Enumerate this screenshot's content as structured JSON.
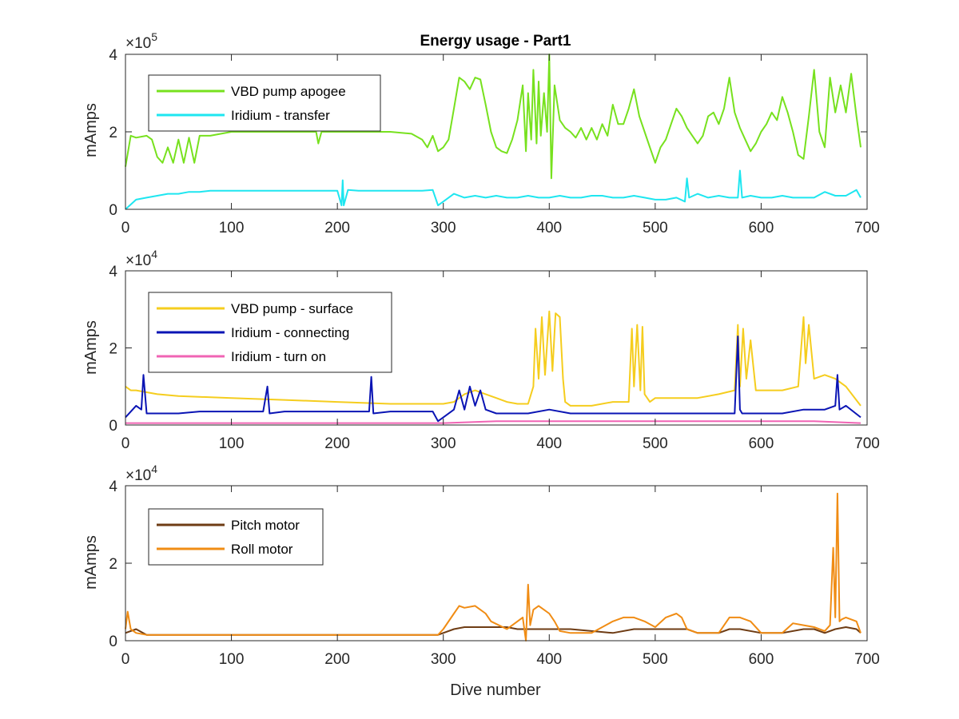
{
  "figure": {
    "background": "#ffffff",
    "axis_color": "#262626"
  },
  "chart_data": [
    {
      "type": "line",
      "title": "Energy usage - Part1",
      "xlabel": "",
      "ylabel": "mAmps",
      "y_multiplier": "×10",
      "y_exponent": "5",
      "xlim": [
        0,
        700
      ],
      "ylim": [
        0,
        4
      ],
      "xticks": [
        0,
        100,
        200,
        300,
        400,
        500,
        600,
        700
      ],
      "yticks": [
        0,
        2,
        4
      ],
      "grid": false,
      "legend_position": "top-left",
      "series": [
        {
          "name": "VBD pump apogee",
          "color": "#77e11e",
          "x": [
            0,
            5,
            10,
            20,
            25,
            30,
            35,
            40,
            45,
            50,
            55,
            60,
            65,
            70,
            80,
            100,
            120,
            150,
            180,
            182,
            185,
            200,
            220,
            250,
            270,
            280,
            285,
            290,
            295,
            300,
            305,
            310,
            315,
            320,
            325,
            330,
            335,
            340,
            345,
            350,
            355,
            360,
            365,
            370,
            375,
            378,
            380,
            383,
            385,
            388,
            390,
            392,
            395,
            398,
            400,
            402,
            405,
            410,
            415,
            420,
            425,
            430,
            435,
            440,
            445,
            450,
            455,
            460,
            465,
            470,
            475,
            480,
            485,
            490,
            495,
            500,
            505,
            510,
            515,
            520,
            525,
            530,
            535,
            540,
            545,
            550,
            555,
            560,
            565,
            570,
            575,
            580,
            585,
            590,
            595,
            600,
            605,
            610,
            615,
            620,
            625,
            630,
            635,
            640,
            645,
            650,
            655,
            660,
            665,
            670,
            675,
            680,
            685,
            690,
            694
          ],
          "values": [
            1.1,
            1.9,
            1.85,
            1.9,
            1.8,
            1.35,
            1.2,
            1.6,
            1.2,
            1.8,
            1.2,
            1.85,
            1.2,
            1.9,
            1.9,
            2.0,
            2.0,
            2.0,
            2.0,
            1.7,
            2.0,
            2.0,
            2.0,
            2.0,
            1.95,
            1.8,
            1.6,
            1.9,
            1.5,
            1.6,
            1.8,
            2.6,
            3.4,
            3.3,
            3.1,
            3.4,
            3.35,
            2.7,
            2.0,
            1.6,
            1.5,
            1.45,
            1.8,
            2.3,
            3.2,
            1.5,
            3.0,
            1.8,
            3.6,
            1.7,
            3.3,
            1.9,
            3.0,
            2.0,
            4.0,
            0.8,
            3.2,
            2.3,
            2.1,
            2.0,
            1.85,
            2.1,
            1.8,
            2.1,
            1.8,
            2.2,
            1.9,
            2.7,
            2.2,
            2.2,
            2.6,
            3.1,
            2.4,
            2.0,
            1.6,
            1.2,
            1.6,
            1.8,
            2.2,
            2.6,
            2.4,
            2.1,
            1.9,
            1.7,
            1.9,
            2.4,
            2.5,
            2.2,
            2.6,
            3.4,
            2.5,
            2.1,
            1.8,
            1.5,
            1.7,
            2.0,
            2.2,
            2.5,
            2.3,
            2.9,
            2.5,
            2.0,
            1.4,
            1.3,
            2.4,
            3.6,
            2.0,
            1.6,
            3.4,
            2.5,
            3.2,
            2.5,
            3.5,
            2.4,
            1.6
          ]
        },
        {
          "name": "Iridium - transfer",
          "color": "#1ee6f0",
          "x": [
            0,
            10,
            20,
            30,
            40,
            50,
            60,
            70,
            80,
            90,
            100,
            110,
            120,
            130,
            140,
            150,
            160,
            170,
            180,
            190,
            200,
            204,
            205,
            206,
            210,
            220,
            230,
            240,
            250,
            260,
            270,
            280,
            290,
            295,
            300,
            310,
            320,
            330,
            340,
            350,
            360,
            370,
            380,
            390,
            400,
            410,
            420,
            430,
            440,
            450,
            460,
            470,
            480,
            490,
            500,
            510,
            520,
            528,
            530,
            532,
            540,
            550,
            560,
            570,
            578,
            580,
            582,
            590,
            600,
            610,
            620,
            630,
            640,
            650,
            660,
            670,
            680,
            690,
            694
          ],
          "values": [
            0.0,
            0.25,
            0.3,
            0.35,
            0.4,
            0.4,
            0.45,
            0.45,
            0.48,
            0.48,
            0.48,
            0.48,
            0.48,
            0.48,
            0.48,
            0.48,
            0.48,
            0.48,
            0.48,
            0.48,
            0.48,
            0.1,
            0.75,
            0.1,
            0.5,
            0.48,
            0.48,
            0.48,
            0.48,
            0.48,
            0.48,
            0.48,
            0.5,
            0.1,
            0.2,
            0.4,
            0.3,
            0.35,
            0.3,
            0.35,
            0.3,
            0.3,
            0.35,
            0.3,
            0.3,
            0.35,
            0.3,
            0.3,
            0.35,
            0.35,
            0.3,
            0.3,
            0.35,
            0.3,
            0.25,
            0.25,
            0.3,
            0.2,
            0.8,
            0.3,
            0.4,
            0.3,
            0.35,
            0.3,
            0.3,
            1.0,
            0.3,
            0.35,
            0.3,
            0.3,
            0.35,
            0.3,
            0.3,
            0.3,
            0.45,
            0.35,
            0.35,
            0.5,
            0.3
          ]
        }
      ]
    },
    {
      "type": "line",
      "title": "",
      "xlabel": "",
      "ylabel": "mAmps",
      "y_multiplier": "×10",
      "y_exponent": "4",
      "xlim": [
        0,
        700
      ],
      "ylim": [
        0,
        4
      ],
      "xticks": [
        0,
        100,
        200,
        300,
        400,
        500,
        600,
        700
      ],
      "yticks": [
        0,
        2,
        4
      ],
      "grid": false,
      "legend_position": "top-left",
      "series": [
        {
          "name": "VBD pump - surface",
          "color": "#f5cd1e",
          "x": [
            0,
            5,
            10,
            20,
            30,
            50,
            100,
            150,
            200,
            250,
            290,
            300,
            310,
            320,
            330,
            340,
            350,
            360,
            370,
            380,
            385,
            387,
            390,
            393,
            396,
            400,
            403,
            406,
            410,
            413,
            415,
            420,
            440,
            460,
            475,
            478,
            480,
            483,
            486,
            488,
            490,
            495,
            500,
            520,
            540,
            560,
            575,
            578,
            580,
            583,
            586,
            590,
            595,
            600,
            620,
            635,
            640,
            642,
            645,
            650,
            660,
            670,
            680,
            694
          ],
          "values": [
            1.0,
            0.9,
            0.9,
            0.85,
            0.8,
            0.75,
            0.7,
            0.65,
            0.6,
            0.55,
            0.55,
            0.55,
            0.6,
            0.8,
            0.9,
            0.8,
            0.7,
            0.6,
            0.55,
            0.55,
            1.0,
            2.5,
            1.2,
            2.8,
            1.3,
            2.95,
            1.4,
            2.9,
            2.8,
            1.2,
            0.6,
            0.5,
            0.5,
            0.6,
            0.6,
            2.5,
            1.0,
            2.6,
            0.9,
            2.55,
            0.8,
            0.6,
            0.7,
            0.7,
            0.7,
            0.8,
            0.9,
            2.6,
            1.0,
            2.5,
            1.2,
            2.2,
            0.9,
            0.9,
            0.9,
            1.0,
            2.8,
            1.6,
            2.6,
            1.2,
            1.3,
            1.2,
            1.0,
            0.5
          ]
        },
        {
          "name": "Iridium - connecting",
          "color": "#0a14b4",
          "x": [
            0,
            10,
            15,
            17,
            20,
            30,
            50,
            70,
            100,
            130,
            134,
            136,
            150,
            170,
            200,
            220,
            230,
            232,
            234,
            250,
            270,
            290,
            295,
            300,
            310,
            315,
            320,
            325,
            330,
            335,
            340,
            350,
            360,
            380,
            400,
            420,
            440,
            460,
            480,
            500,
            520,
            540,
            560,
            575,
            578,
            580,
            582,
            590,
            600,
            620,
            640,
            650,
            660,
            670,
            672,
            674,
            680,
            694
          ],
          "values": [
            0.2,
            0.5,
            0.4,
            1.3,
            0.3,
            0.3,
            0.3,
            0.35,
            0.35,
            0.35,
            1.0,
            0.3,
            0.35,
            0.35,
            0.35,
            0.35,
            0.35,
            1.25,
            0.3,
            0.35,
            0.35,
            0.35,
            0.1,
            0.2,
            0.4,
            0.9,
            0.4,
            1.0,
            0.5,
            0.9,
            0.4,
            0.3,
            0.3,
            0.3,
            0.4,
            0.3,
            0.3,
            0.3,
            0.3,
            0.3,
            0.3,
            0.3,
            0.3,
            0.3,
            2.3,
            0.4,
            0.3,
            0.3,
            0.3,
            0.3,
            0.4,
            0.4,
            0.4,
            0.5,
            1.3,
            0.4,
            0.5,
            0.2
          ]
        },
        {
          "name": "Iridium - turn on",
          "color": "#f064b4",
          "x": [
            0,
            50,
            100,
            150,
            200,
            250,
            300,
            350,
            400,
            450,
            500,
            550,
            600,
            650,
            694
          ],
          "values": [
            0.05,
            0.05,
            0.05,
            0.05,
            0.05,
            0.05,
            0.05,
            0.1,
            0.1,
            0.1,
            0.1,
            0.1,
            0.1,
            0.1,
            0.05
          ]
        }
      ]
    },
    {
      "type": "line",
      "title": "",
      "xlabel": "Dive number",
      "ylabel": "mAmps",
      "y_multiplier": "×10",
      "y_exponent": "4",
      "xlim": [
        0,
        700
      ],
      "ylim": [
        0,
        4
      ],
      "xticks": [
        0,
        100,
        200,
        300,
        400,
        500,
        600,
        700
      ],
      "yticks": [
        0,
        2,
        4
      ],
      "grid": false,
      "legend_position": "top-left",
      "series": [
        {
          "name": "Pitch motor",
          "color": "#6e3c14",
          "x": [
            0,
            10,
            20,
            50,
            100,
            150,
            200,
            250,
            295,
            300,
            310,
            320,
            340,
            360,
            370,
            380,
            400,
            420,
            440,
            460,
            480,
            500,
            520,
            530,
            540,
            560,
            570,
            580,
            600,
            620,
            640,
            650,
            660,
            670,
            680,
            690,
            694
          ],
          "values": [
            0.2,
            0.3,
            0.15,
            0.15,
            0.15,
            0.15,
            0.15,
            0.15,
            0.15,
            0.2,
            0.3,
            0.35,
            0.35,
            0.35,
            0.3,
            0.3,
            0.3,
            0.3,
            0.25,
            0.2,
            0.3,
            0.3,
            0.3,
            0.3,
            0.2,
            0.2,
            0.3,
            0.3,
            0.2,
            0.2,
            0.3,
            0.3,
            0.2,
            0.3,
            0.35,
            0.3,
            0.2
          ]
        },
        {
          "name": "Roll motor",
          "color": "#f08c14",
          "x": [
            0,
            2,
            5,
            10,
            20,
            50,
            100,
            150,
            200,
            250,
            295,
            300,
            310,
            315,
            320,
            330,
            340,
            345,
            360,
            370,
            375,
            378,
            380,
            382,
            385,
            390,
            400,
            405,
            410,
            420,
            440,
            460,
            470,
            480,
            490,
            500,
            510,
            520,
            525,
            530,
            540,
            560,
            570,
            580,
            590,
            600,
            620,
            630,
            640,
            650,
            660,
            665,
            668,
            670,
            672,
            674,
            676,
            680,
            690,
            694
          ],
          "values": [
            0.3,
            0.75,
            0.3,
            0.2,
            0.15,
            0.15,
            0.15,
            0.15,
            0.15,
            0.15,
            0.15,
            0.3,
            0.7,
            0.9,
            0.85,
            0.9,
            0.7,
            0.5,
            0.3,
            0.5,
            0.6,
            0.0,
            1.45,
            0.4,
            0.8,
            0.9,
            0.7,
            0.5,
            0.25,
            0.2,
            0.2,
            0.5,
            0.6,
            0.6,
            0.5,
            0.35,
            0.6,
            0.7,
            0.6,
            0.3,
            0.2,
            0.2,
            0.6,
            0.6,
            0.5,
            0.2,
            0.2,
            0.45,
            0.4,
            0.35,
            0.25,
            0.4,
            2.4,
            0.6,
            3.8,
            0.5,
            0.55,
            0.6,
            0.5,
            0.2
          ]
        }
      ]
    }
  ]
}
